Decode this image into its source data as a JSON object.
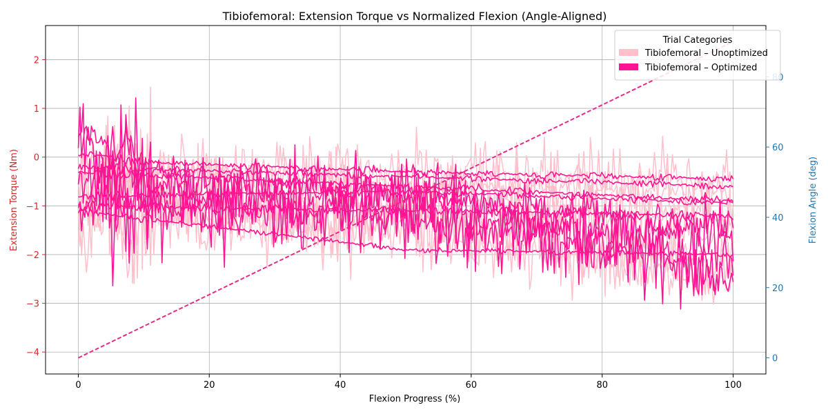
{
  "chart_data": {
    "type": "line",
    "title": "Tibiofemoral: Extension Torque vs Normalized Flexion (Angle-Aligned)",
    "xlabel": "Flexion Progress (%)",
    "ylabel_left": "Extension Torque (Nm)",
    "ylabel_right": "Flexion Angle (deg)",
    "xlim": [
      -5,
      105
    ],
    "ylim_left": [
      -4.45,
      2.7
    ],
    "ylim_right": [
      -4.6,
      94.6
    ],
    "x_ticks": [
      0,
      20,
      40,
      60,
      80,
      100
    ],
    "y_ticks_left": [
      -4,
      -3,
      -2,
      -1,
      0,
      1,
      2
    ],
    "y_ticks_right": [
      0,
      20,
      40,
      60,
      80
    ],
    "grid": true,
    "legend": {
      "title": "Trial Categories",
      "placement": "top-right",
      "entries": [
        {
          "label": "Tibiofemoral – Unoptimized",
          "color": "#ffc0cb"
        },
        {
          "label": "Tibiofemoral – Optimized",
          "color": "#ff1493"
        }
      ]
    },
    "colors": {
      "unoptimized": "#ffc0cb",
      "optimized": "#ff1493",
      "angle": "#e7298a",
      "left_axis": "#d62728",
      "right_axis": "#1f77b4"
    },
    "series": [
      {
        "group": "unoptimized",
        "axis": "left",
        "trend": [
          [
            0,
            -0.3
          ],
          [
            50,
            -0.6
          ],
          [
            100,
            -0.7
          ]
        ],
        "noise": 0.35,
        "spike": 0.3,
        "seed": 11
      },
      {
        "group": "unoptimized",
        "axis": "left",
        "trend": [
          [
            0,
            -0.9
          ],
          [
            50,
            -1.1
          ],
          [
            100,
            -1.3
          ]
        ],
        "noise": 0.5,
        "spike": 0.35,
        "seed": 12
      },
      {
        "group": "unoptimized",
        "axis": "left",
        "trend": [
          [
            0,
            -0.6
          ],
          [
            50,
            -0.9
          ],
          [
            100,
            -1.8
          ]
        ],
        "noise": 0.6,
        "spike": 0.4,
        "seed": 13
      },
      {
        "group": "unoptimized",
        "axis": "left",
        "trend": [
          [
            0,
            -1.3
          ],
          [
            50,
            -1.4
          ],
          [
            100,
            -2.3
          ]
        ],
        "noise": 0.55,
        "spike": 0.35,
        "seed": 14
      },
      {
        "group": "unoptimized",
        "axis": "left",
        "trend": [
          [
            0,
            -0.2
          ],
          [
            50,
            -0.3
          ],
          [
            100,
            -0.5
          ]
        ],
        "noise": 0.45,
        "spike": 0.45,
        "seed": 15
      },
      {
        "group": "unoptimized",
        "axis": "left",
        "trend": [
          [
            0,
            -1.0
          ],
          [
            50,
            -1.6
          ],
          [
            100,
            -2.6
          ]
        ],
        "noise": 0.5,
        "spike": 0.4,
        "seed": 16
      },
      {
        "group": "optimized",
        "axis": "left",
        "trend": [
          [
            0,
            0.1
          ],
          [
            10,
            -0.1
          ],
          [
            50,
            -0.3
          ],
          [
            100,
            -0.45
          ]
        ],
        "noise": 0.08,
        "spike": 0.02,
        "seed": 21
      },
      {
        "group": "optimized",
        "axis": "left",
        "trend": [
          [
            0,
            -0.2
          ],
          [
            50,
            -0.4
          ],
          [
            100,
            -0.6
          ]
        ],
        "noise": 0.08,
        "spike": 0.02,
        "seed": 22
      },
      {
        "group": "optimized",
        "axis": "left",
        "trend": [
          [
            0,
            -0.3
          ],
          [
            50,
            -0.6
          ],
          [
            100,
            -0.9
          ]
        ],
        "noise": 0.08,
        "spike": 0.02,
        "seed": 23
      },
      {
        "group": "optimized",
        "axis": "left",
        "trend": [
          [
            0,
            -0.8
          ],
          [
            50,
            -0.7
          ],
          [
            100,
            -0.95
          ]
        ],
        "noise": 0.08,
        "spike": 0.02,
        "seed": 24
      },
      {
        "group": "optimized",
        "axis": "left",
        "trend": [
          [
            0,
            -1.0
          ],
          [
            50,
            -1.1
          ],
          [
            100,
            -1.2
          ]
        ],
        "noise": 0.1,
        "spike": 0.02,
        "seed": 25
      },
      {
        "group": "optimized",
        "axis": "left",
        "trend": [
          [
            0,
            -1.1
          ],
          [
            25,
            -1.5
          ],
          [
            50,
            -1.9
          ],
          [
            100,
            -2.0
          ]
        ],
        "noise": 0.06,
        "spike": 0.02,
        "seed": 26
      },
      {
        "group": "optimized",
        "axis": "left",
        "trend": [
          [
            0,
            0.7
          ],
          [
            5,
            0.2
          ],
          [
            10,
            -0.3
          ],
          [
            50,
            -0.8
          ],
          [
            100,
            -1.4
          ]
        ],
        "noise": 0.35,
        "spike": 0.15,
        "seed": 27
      },
      {
        "group": "optimized",
        "axis": "left",
        "trend": [
          [
            0,
            0.5
          ],
          [
            10,
            -0.6
          ],
          [
            50,
            -1.2
          ],
          [
            100,
            -2.3
          ]
        ],
        "noise": 0.55,
        "spike": 0.25,
        "seed": 28
      },
      {
        "group": "optimized",
        "axis": "left",
        "trend": [
          [
            0,
            -0.4
          ],
          [
            10,
            -1.0
          ],
          [
            50,
            -0.6
          ],
          [
            100,
            -2.5
          ]
        ],
        "noise": 0.6,
        "spike": 0.3,
        "seed": 29
      },
      {
        "group": "optimized",
        "axis": "left",
        "trend": [
          [
            0,
            -0.9
          ],
          [
            50,
            -1.3
          ],
          [
            100,
            -1.6
          ]
        ],
        "noise": 0.55,
        "spike": 0.3,
        "seed": 30
      },
      {
        "group": "angle",
        "axis": "right",
        "trend": [
          [
            0,
            0
          ],
          [
            100,
            90
          ]
        ],
        "noise": 0,
        "spike": 0,
        "seed": 1
      }
    ]
  }
}
